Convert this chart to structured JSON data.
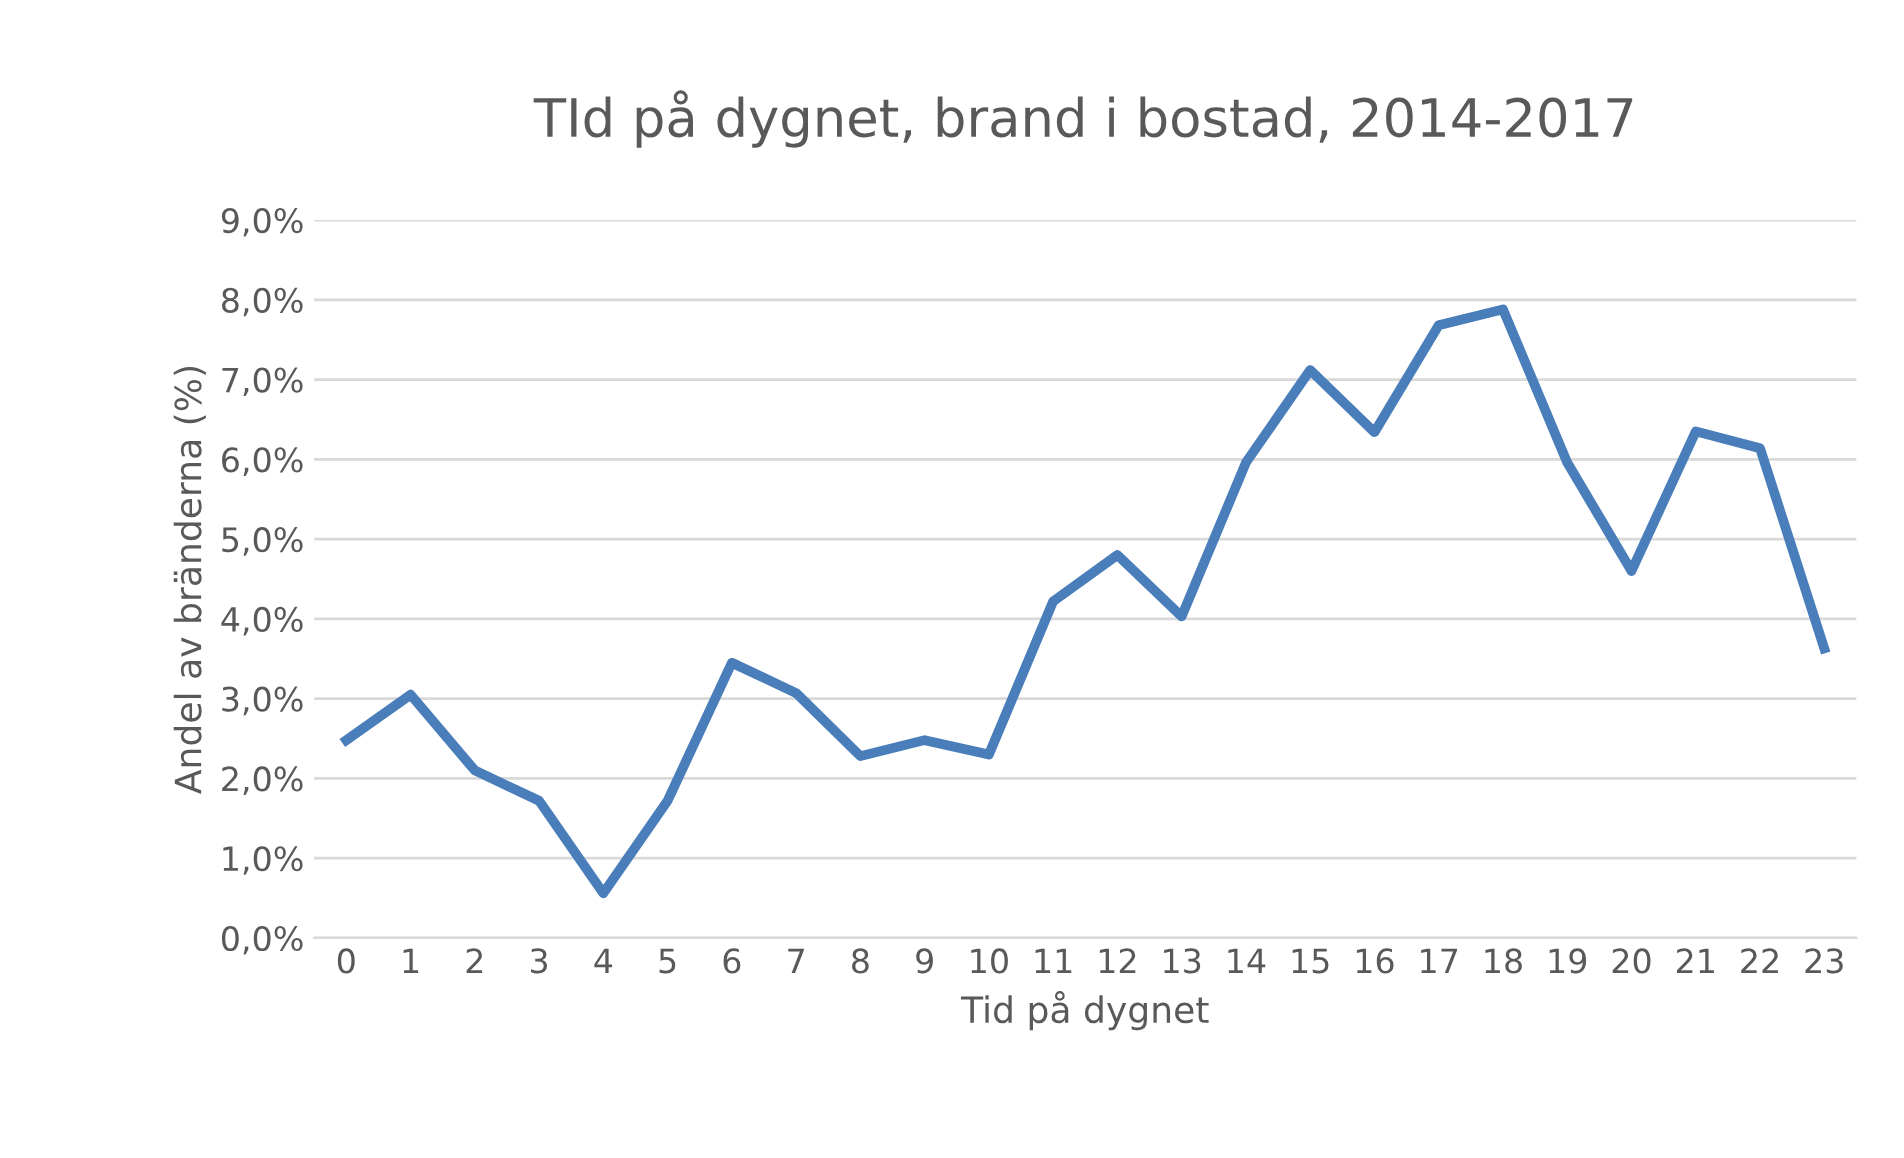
{
  "chart_data": {
    "type": "line",
    "title": "TId på dygnet, brand i bostad, 2014-2017",
    "xlabel": "Tid på dygnet",
    "ylabel": "Andel av bränderna (%)",
    "categories": [
      "0",
      "1",
      "2",
      "3",
      "4",
      "5",
      "6",
      "7",
      "8",
      "9",
      "10",
      "11",
      "12",
      "13",
      "14",
      "15",
      "16",
      "17",
      "18",
      "19",
      "20",
      "21",
      "22",
      "23"
    ],
    "series": [
      {
        "color": "#4a7ebb",
        "values": [
          2.48,
          3.05,
          2.1,
          1.72,
          0.56,
          1.72,
          3.45,
          3.07,
          2.28,
          2.48,
          2.3,
          4.22,
          4.8,
          4.03,
          5.96,
          7.12,
          6.34,
          7.68,
          7.88,
          5.96,
          4.6,
          6.35,
          6.14,
          3.63
        ]
      }
    ],
    "ylim": [
      0,
      9
    ],
    "yticks": [
      {
        "value": 0,
        "label": "0,0%"
      },
      {
        "value": 1,
        "label": "1,0%"
      },
      {
        "value": 2,
        "label": "2,0%"
      },
      {
        "value": 3,
        "label": "3,0%"
      },
      {
        "value": 4,
        "label": "4,0%"
      },
      {
        "value": 5,
        "label": "5,0%"
      },
      {
        "value": 6,
        "label": "6,0%"
      },
      {
        "value": 7,
        "label": "7,0%"
      },
      {
        "value": 8,
        "label": "8,0%"
      },
      {
        "value": 9,
        "label": "9,0%"
      }
    ],
    "grid": "y",
    "line_style": "solid"
  }
}
